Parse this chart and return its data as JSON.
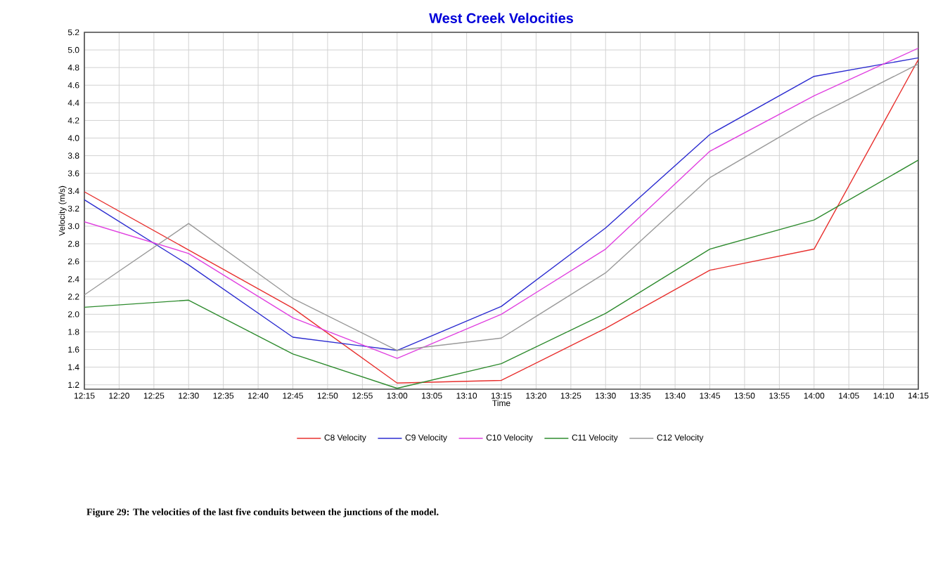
{
  "chart_data": {
    "type": "line",
    "title": "West Creek Velocities",
    "xlabel": "Time",
    "ylabel": "Velocity (m/s)",
    "x": [
      12.25,
      12.5,
      12.75,
      13.0,
      13.25,
      13.5,
      13.75,
      14.0,
      14.25
    ],
    "series": [
      {
        "name": "C8 Velocity",
        "color": "#e8302e",
        "values": [
          3.39,
          2.73,
          2.07,
          1.22,
          1.25,
          1.84,
          2.5,
          2.74,
          4.89
        ]
      },
      {
        "name": "C9 Velocity",
        "color": "#2b2bd0",
        "values": [
          3.3,
          2.56,
          1.74,
          1.59,
          2.09,
          2.98,
          4.04,
          4.7,
          4.91
        ]
      },
      {
        "name": "C10 Velocity",
        "color": "#e040e0",
        "values": [
          3.05,
          2.69,
          1.96,
          1.5,
          2.0,
          2.74,
          3.85,
          4.48,
          5.02
        ]
      },
      {
        "name": "C11 Velocity",
        "color": "#2e8b2e",
        "values": [
          2.08,
          2.16,
          1.55,
          1.16,
          1.44,
          2.01,
          2.74,
          3.07,
          3.75
        ]
      },
      {
        "name": "C12 Velocity",
        "color": "#9a9a9a",
        "values": [
          2.22,
          3.03,
          2.18,
          1.59,
          1.73,
          2.47,
          3.55,
          4.24,
          4.84
        ]
      }
    ],
    "xlim": [
      12.25,
      14.25
    ],
    "xticks": [
      {
        "value": 12.25,
        "label": "12:15"
      },
      {
        "value": 12.3333,
        "label": "12:20"
      },
      {
        "value": 12.4167,
        "label": "12:25"
      },
      {
        "value": 12.5,
        "label": "12:30"
      },
      {
        "value": 12.5833,
        "label": "12:35"
      },
      {
        "value": 12.6667,
        "label": "12:40"
      },
      {
        "value": 12.75,
        "label": "12:45"
      },
      {
        "value": 12.8333,
        "label": "12:50"
      },
      {
        "value": 12.9167,
        "label": "12:55"
      },
      {
        "value": 13.0,
        "label": "13:00"
      },
      {
        "value": 13.0833,
        "label": "13:05"
      },
      {
        "value": 13.1667,
        "label": "13:10"
      },
      {
        "value": 13.25,
        "label": "13:15"
      },
      {
        "value": 13.3333,
        "label": "13:20"
      },
      {
        "value": 13.4167,
        "label": "13:25"
      },
      {
        "value": 13.5,
        "label": "13:30"
      },
      {
        "value": 13.5833,
        "label": "13:35"
      },
      {
        "value": 13.6667,
        "label": "13:40"
      },
      {
        "value": 13.75,
        "label": "13:45"
      },
      {
        "value": 13.8333,
        "label": "13:50"
      },
      {
        "value": 13.9167,
        "label": "13:55"
      },
      {
        "value": 14.0,
        "label": "14:00"
      },
      {
        "value": 14.0833,
        "label": "14:05"
      },
      {
        "value": 14.1667,
        "label": "14:10"
      },
      {
        "value": 14.25,
        "label": "14:15"
      }
    ],
    "ylim": [
      1.15,
      5.2
    ],
    "yticks": [
      {
        "value": 1.2,
        "label": "1.2"
      },
      {
        "value": 1.4,
        "label": "1.4"
      },
      {
        "value": 1.6,
        "label": "1.6"
      },
      {
        "value": 1.8,
        "label": "1.8"
      },
      {
        "value": 2.0,
        "label": "2.0"
      },
      {
        "value": 2.2,
        "label": "2.2"
      },
      {
        "value": 2.4,
        "label": "2.4"
      },
      {
        "value": 2.6,
        "label": "2.6"
      },
      {
        "value": 2.8,
        "label": "2.8"
      },
      {
        "value": 3.0,
        "label": "3.0"
      },
      {
        "value": 3.2,
        "label": "3.2"
      },
      {
        "value": 3.4,
        "label": "3.4"
      },
      {
        "value": 3.6,
        "label": "3.6"
      },
      {
        "value": 3.8,
        "label": "3.8"
      },
      {
        "value": 4.0,
        "label": "4.0"
      },
      {
        "value": 4.2,
        "label": "4.2"
      },
      {
        "value": 4.4,
        "label": "4.4"
      },
      {
        "value": 4.6,
        "label": "4.6"
      },
      {
        "value": 4.8,
        "label": "4.8"
      },
      {
        "value": 5.0,
        "label": "5.0"
      },
      {
        "value": 5.2,
        "label": "5.2"
      }
    ],
    "grid": true,
    "legend": "bottom",
    "marker": "none",
    "line_style": "solid",
    "annotations": [
      "**Figure 29: The velocities of the last five conduits between the junctions of the model.**"
    ]
  }
}
